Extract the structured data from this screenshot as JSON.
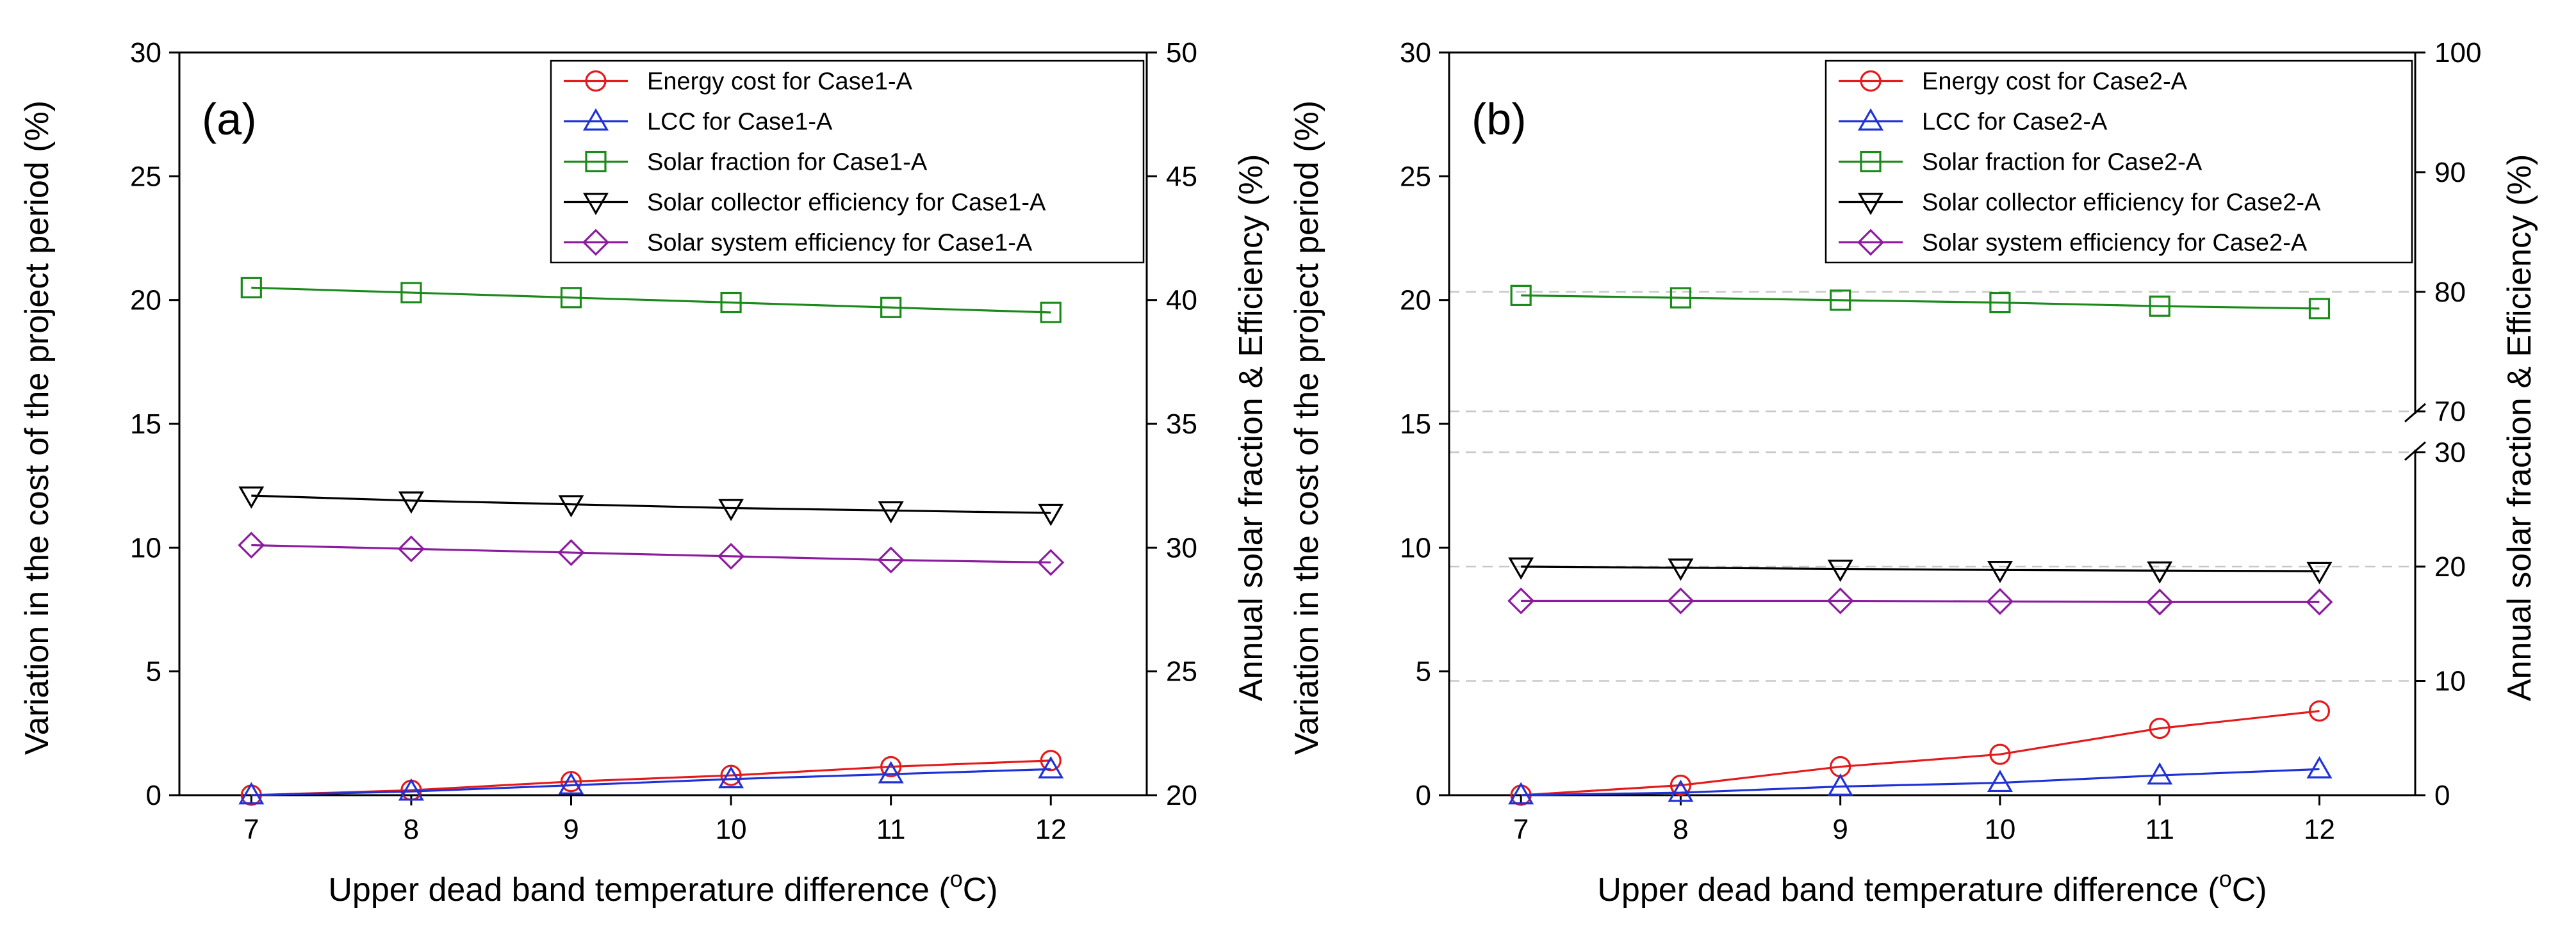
{
  "chart_data": [
    {
      "type": "line",
      "panel_label": "(a)",
      "xlabel": "Upper dead band temperature difference (",
      "xlabel_unit": "oC",
      "xlabel_close": ")",
      "ylabel": "Variation in the cost of the project period (%)",
      "y2label": "Annual solar fraction & Efficiency (%)",
      "x": [
        7,
        8,
        9,
        10,
        11,
        12
      ],
      "x_ticks": [
        "7",
        "8",
        "9",
        "10",
        "11",
        "12"
      ],
      "xlim": [
        6.55,
        12.6
      ],
      "ylim": [
        0,
        30
      ],
      "y_ticks": [
        "0",
        "5",
        "10",
        "15",
        "20",
        "25",
        "30"
      ],
      "y_tick_values": [
        0,
        5,
        10,
        15,
        20,
        25,
        30
      ],
      "y2lim": [
        20,
        50
      ],
      "y2_ticks": [
        "20",
        "25",
        "30",
        "35",
        "40",
        "45",
        "50"
      ],
      "y2_tick_values": [
        20,
        25,
        30,
        35,
        40,
        45,
        50
      ],
      "series": [
        {
          "name": "Energy cost for Case1-A",
          "axis": "left",
          "color": "#e41a1c",
          "marker": "circle",
          "values": [
            0.0,
            0.2,
            0.55,
            0.8,
            1.15,
            1.4
          ]
        },
        {
          "name": "LCC for Case1-A",
          "axis": "left",
          "color": "#1f32d8",
          "marker": "triangle-up",
          "values": [
            0.0,
            0.15,
            0.4,
            0.65,
            0.85,
            1.05
          ]
        },
        {
          "name": "Solar fraction for Case1-A",
          "axis": "right",
          "color": "#1a8a1a",
          "marker": "square",
          "values": [
            40.5,
            40.3,
            40.1,
            39.9,
            39.7,
            39.5
          ]
        },
        {
          "name": "Solar collector efficiency for Case1-A",
          "axis": "right",
          "color": "#000000",
          "marker": "triangle-down",
          "values": [
            32.1,
            31.9,
            31.75,
            31.6,
            31.5,
            31.4
          ]
        },
        {
          "name": "Solar system efficiency for Case1-A",
          "axis": "right",
          "color": "#8b1c9e",
          "marker": "diamond",
          "values": [
            30.1,
            29.95,
            29.8,
            29.65,
            29.5,
            29.4
          ]
        }
      ]
    },
    {
      "type": "line",
      "panel_label": "(b)",
      "xlabel": "Upper dead band temperature difference (",
      "xlabel_unit": "oC",
      "xlabel_close": ")",
      "ylabel": "Variation in the cost of the project period (%)",
      "y2label": "Annual solar fraction & Efficiency (%)",
      "x": [
        7,
        8,
        9,
        10,
        11,
        12
      ],
      "x_ticks": [
        "7",
        "8",
        "9",
        "10",
        "11",
        "12"
      ],
      "xlim": [
        6.55,
        12.6
      ],
      "ylim": [
        0,
        30
      ],
      "y_ticks": [
        "0",
        "5",
        "10",
        "15",
        "20",
        "25",
        "30"
      ],
      "y_tick_values": [
        0,
        5,
        10,
        15,
        20,
        25,
        30
      ],
      "y2_broken": true,
      "y2_segments": [
        {
          "range": [
            0,
            30
          ],
          "y_range": [
            0,
            13.85
          ]
        },
        {
          "range": [
            70,
            100
          ],
          "y_range": [
            15.5,
            30
          ]
        }
      ],
      "y2_ticks": [
        "0",
        "10",
        "20",
        "30",
        "70",
        "80",
        "90",
        "100"
      ],
      "y2_tick_values": [
        0,
        10,
        20,
        30,
        70,
        80,
        90,
        100
      ],
      "y2_gridlines": [
        10,
        20,
        30,
        70,
        80
      ],
      "series": [
        {
          "name": "Energy cost for Case2-A",
          "axis": "left",
          "color": "#e41a1c",
          "marker": "circle",
          "values": [
            0.0,
            0.4,
            1.15,
            1.65,
            2.7,
            3.4
          ]
        },
        {
          "name": "LCC for Case2-A",
          "axis": "left",
          "color": "#1f32d8",
          "marker": "triangle-up",
          "values": [
            0.0,
            0.1,
            0.35,
            0.5,
            0.8,
            1.05
          ]
        },
        {
          "name": "Solar fraction for Case2-A",
          "axis": "right",
          "color": "#1a8a1a",
          "marker": "square",
          "values": [
            79.7,
            79.5,
            79.3,
            79.1,
            78.8,
            78.6
          ]
        },
        {
          "name": "Solar collector efficiency for Case2-A",
          "axis": "right",
          "color": "#000000",
          "marker": "triangle-down",
          "values": [
            20.0,
            19.9,
            19.8,
            19.7,
            19.65,
            19.6
          ]
        },
        {
          "name": "Solar system efficiency for Case2-A",
          "axis": "right",
          "color": "#8b1c9e",
          "marker": "diamond",
          "values": [
            17.0,
            17.0,
            17.0,
            16.95,
            16.9,
            16.9
          ]
        }
      ]
    }
  ]
}
